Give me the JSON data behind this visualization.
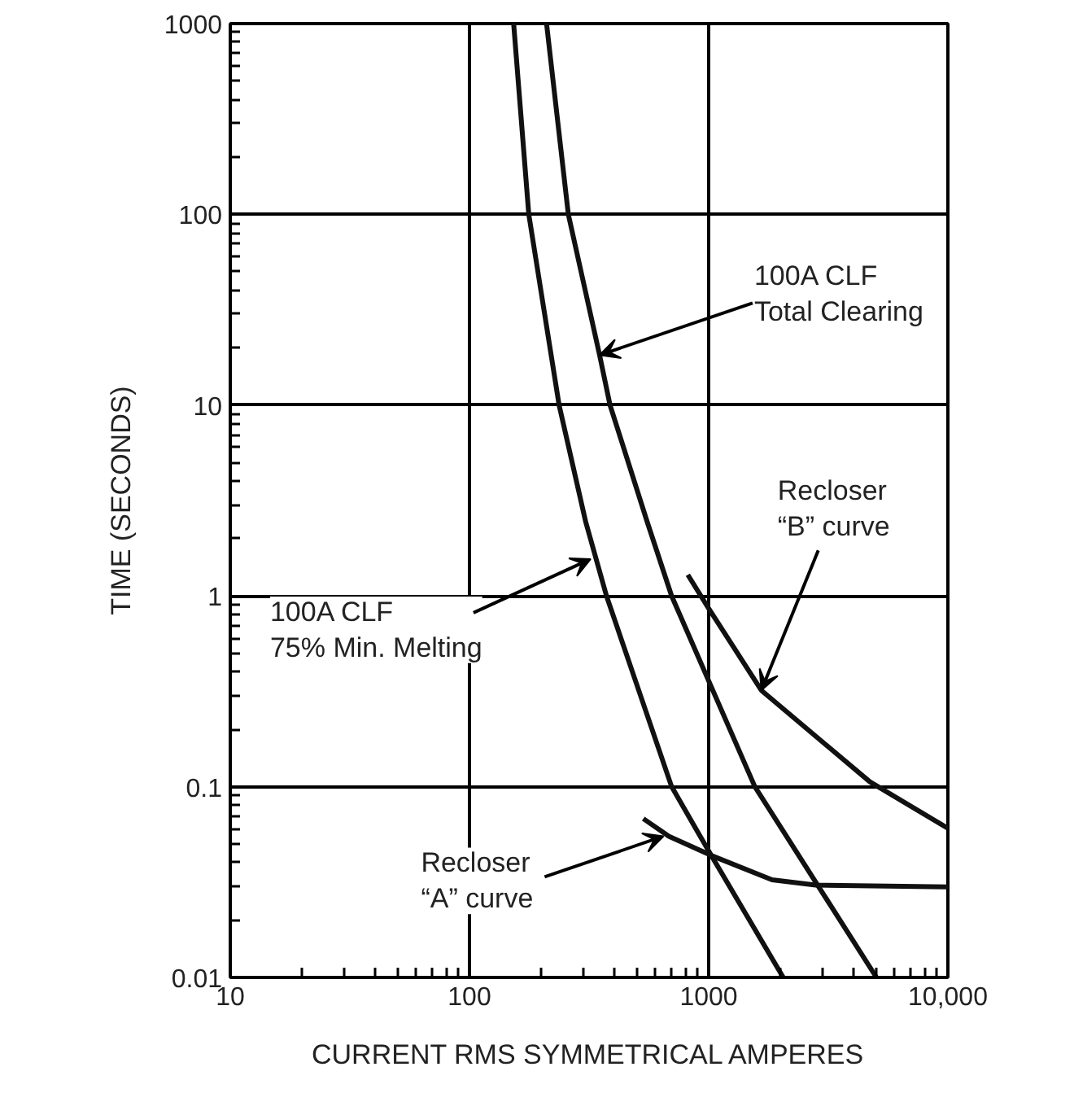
{
  "chart_data": {
    "type": "line",
    "xlabel": "CURRENT RMS SYMMETRICAL AMPERES",
    "ylabel": "TIME (SECONDS)",
    "log": "xy",
    "grid": true,
    "marker": "none",
    "line_style": "solid",
    "xlim": [
      10,
      10000
    ],
    "ylim": [
      0.01,
      1000
    ],
    "xticks": [
      10,
      100,
      1000,
      {
        "value": 10000,
        "label": "10,000"
      }
    ],
    "yticks": [
      0.01,
      0.1,
      1,
      10,
      100,
      1000
    ],
    "series": [
      {
        "color": "#111111",
        "x": [
          153,
          177,
          237,
          306,
          374,
          700,
          1025,
          2050
        ],
        "values": [
          1000,
          100,
          10,
          2.45,
          1,
          0.1,
          0.0436,
          0.01
        ]
      },
      {
        "color": "#111111",
        "x": [
          210,
          259,
          350,
          387,
          553,
          700,
          1560,
          5030
        ],
        "values": [
          1000,
          100,
          18.3,
          10,
          2.45,
          1,
          0.1,
          0.01
        ]
      },
      {
        "color": "#111111",
        "x": [
          818,
          1000,
          1660,
          4720,
          10000
        ],
        "values": [
          1.29,
          0.86,
          0.32,
          0.106,
          0.0605
        ]
      },
      {
        "color": "#111111",
        "x": [
          533,
          681,
          1025,
          1840,
          2800,
          10000
        ],
        "values": [
          0.068,
          0.055,
          0.0436,
          0.0325,
          0.0305,
          0.0298
        ]
      }
    ],
    "annotations": [
      {
        "text": "100A CLF\nTotal Clearing",
        "x": 350,
        "y": 18.3
      },
      {
        "text": "100A CLF\n75% Min. Melting",
        "x": 321,
        "y": 1.56
      },
      {
        "text": "Recloser\n“B” curve",
        "x": 1660,
        "y": 0.32
      },
      {
        "text": "Recloser\n“A” curve",
        "x": 647,
        "y": 0.055
      }
    ]
  }
}
